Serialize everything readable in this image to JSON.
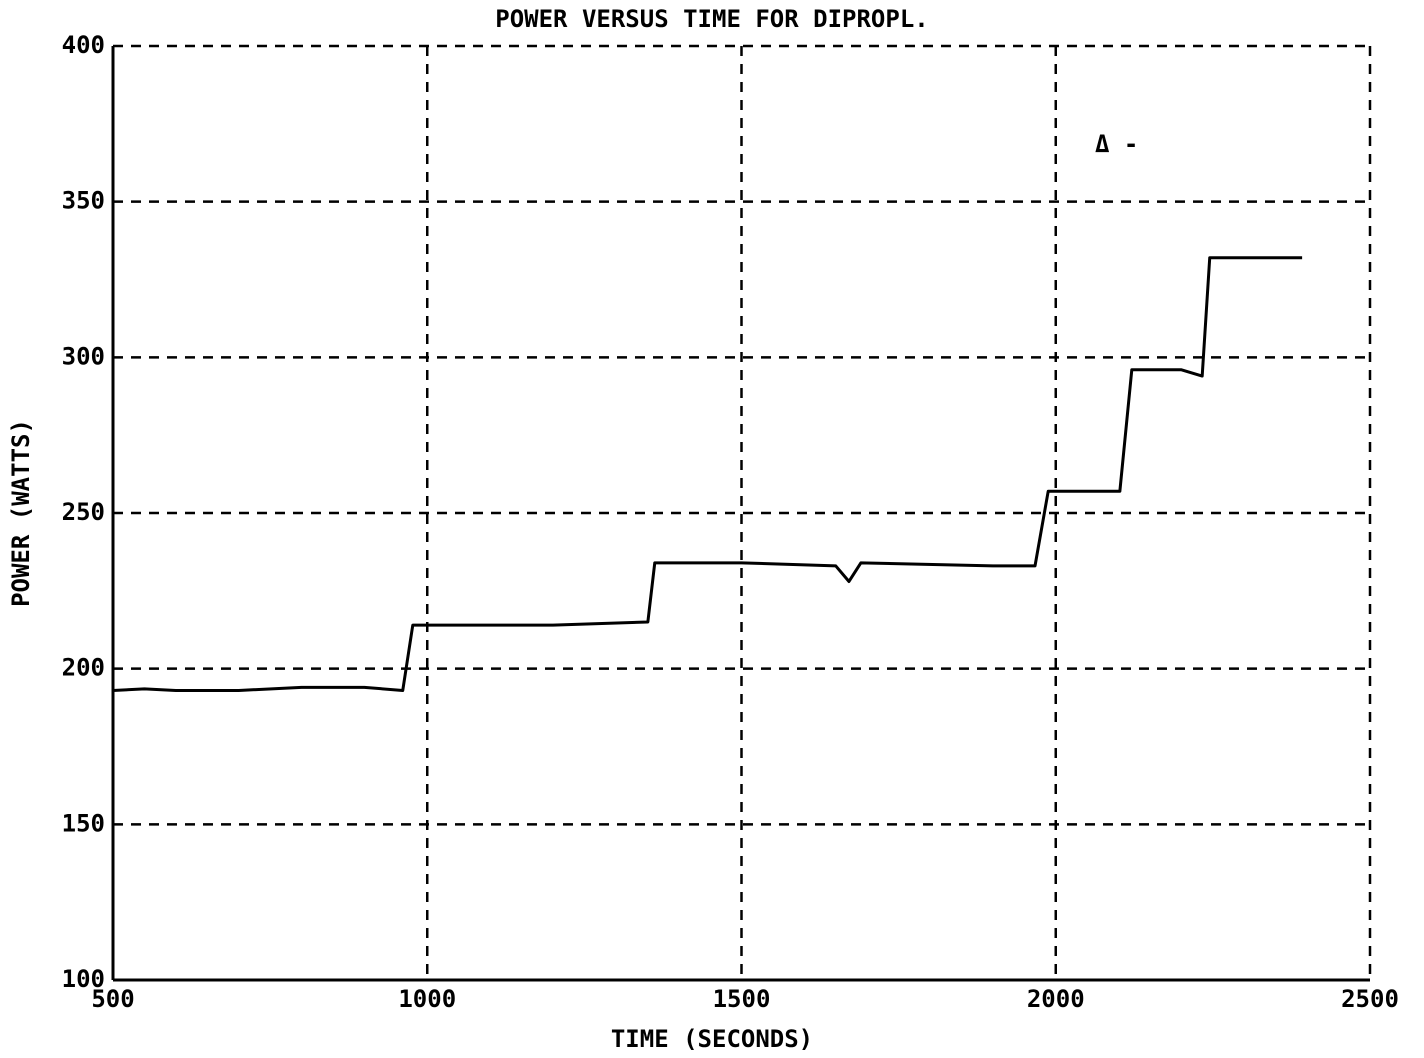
{
  "chart_data": {
    "type": "line",
    "title": "POWER VERSUS TIME FOR DIPROPL.",
    "xlabel": "TIME (SECONDS)",
    "ylabel": "POWER (WATTS)",
    "annotation": "Δ -",
    "x": [
      500,
      550,
      600,
      700,
      800,
      900,
      961,
      977,
      1000,
      1200,
      1351,
      1362,
      1500,
      1650,
      1671,
      1690,
      1900,
      1967,
      1988,
      2000,
      2102,
      2121,
      2200,
      2233,
      2245,
      2300,
      2392
    ],
    "series": [
      {
        "name": "POWER",
        "color": "#000000",
        "values": [
          193,
          193.5,
          193,
          193,
          194,
          194,
          193,
          214,
          214,
          214,
          215,
          234,
          234,
          233,
          228,
          234,
          233,
          233,
          257,
          257,
          257,
          296,
          296,
          294,
          332,
          332,
          332
        ]
      }
    ],
    "xlim": [
      500,
      2500
    ],
    "xticks": [
      500,
      1000,
      1500,
      2000,
      2500
    ],
    "ylim": [
      100,
      400
    ],
    "yticks": [
      100,
      150,
      200,
      250,
      300,
      350,
      400
    ],
    "grid": true
  }
}
